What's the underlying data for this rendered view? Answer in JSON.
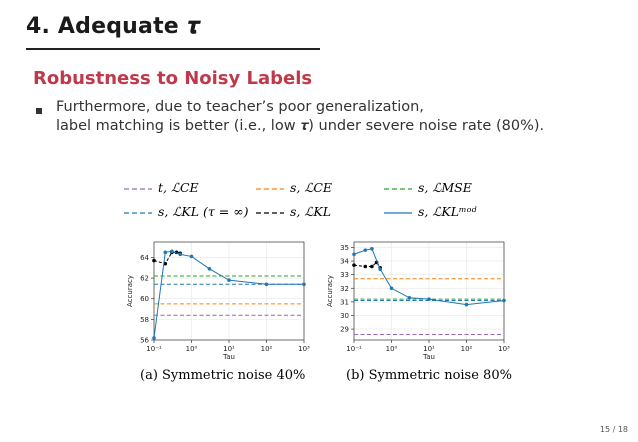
{
  "slide": {
    "title": "4. Adequate 𝝉",
    "section": "Robustness to Noisy Labels",
    "bullet_line1": "Furthermore, due to teacher’s poor generalization,",
    "bullet_line2": "label matching is better (i.e., low 𝝉) under severe noise rate (80%).",
    "page": "15 / 18"
  },
  "legend": {
    "items": [
      {
        "label": "𝑡, ℒ𝐶𝐸",
        "color": "#9467bd",
        "style": "dashed"
      },
      {
        "label": "𝑠, ℒ𝐶𝐸",
        "color": "#ff7f0e",
        "style": "dashed"
      },
      {
        "label": "𝑠, ℒ𝑀𝑆𝐸",
        "color": "#2ca02c",
        "style": "dashed"
      },
      {
        "label": "𝑠, ℒ𝐾𝐿 (τ = ∞)",
        "color": "#1f77b4",
        "style": "dashed"
      },
      {
        "label": "𝑠, ℒ𝐾𝐿",
        "color": "#000000",
        "style": "dashed"
      },
      {
        "label": "𝑠, ℒ𝐾𝐿ᵐᵒᵈ",
        "color": "#1f77b4",
        "style": "solid"
      }
    ]
  },
  "chart_data": [
    {
      "type": "line",
      "caption": "(a) Symmetric noise 40%",
      "xlabel": "Tau",
      "ylabel": "Accuracy",
      "x_scale": "log",
      "xlim": [
        0.1,
        1000
      ],
      "ylim": [
        56,
        65.5
      ],
      "x_ticks": [
        0.1,
        1,
        10,
        100,
        1000
      ],
      "x_tick_labels": [
        "10⁻¹",
        "10⁰",
        "10¹",
        "10²",
        "10³"
      ],
      "y_ticks": [
        56,
        58,
        60,
        62,
        64
      ],
      "y_tick_labels": [
        "56",
        "58",
        "60",
        "62",
        "64"
      ],
      "series": [
        {
          "key": "t_ce",
          "type": "hline",
          "y": 58.4,
          "color": "#9467bd"
        },
        {
          "key": "s_ce",
          "type": "hline",
          "y": 59.5,
          "color": "#ff7f0e"
        },
        {
          "key": "s_mse",
          "type": "hline",
          "y": 62.2,
          "color": "#2ca02c"
        },
        {
          "key": "s_kl_inf",
          "type": "hline",
          "y": 61.4,
          "color": "#1f77b4"
        },
        {
          "key": "s_kl",
          "color": "#000000",
          "style": "dashed",
          "x": [
            0.1,
            0.2,
            0.3,
            0.4,
            0.5
          ],
          "y": [
            63.7,
            63.4,
            64.5,
            64.5,
            64.4
          ]
        },
        {
          "key": "s_kl_mod",
          "color": "#1f77b4",
          "style": "solid",
          "x": [
            0.1,
            0.2,
            0.3,
            0.5,
            1,
            3,
            10,
            100,
            1000
          ],
          "y": [
            56.2,
            64.5,
            64.6,
            64.3,
            64.1,
            62.9,
            61.8,
            61.4,
            61.4
          ]
        }
      ]
    },
    {
      "type": "line",
      "caption": "(b) Symmetric noise 80%",
      "xlabel": "Tau",
      "ylabel": "Accuracy",
      "x_scale": "log",
      "xlim": [
        0.1,
        1000
      ],
      "ylim": [
        28.2,
        35.4
      ],
      "x_ticks": [
        0.1,
        1,
        10,
        100,
        1000
      ],
      "x_tick_labels": [
        "10⁻¹",
        "10⁰",
        "10¹",
        "10²",
        "10³"
      ],
      "y_ticks": [
        29,
        30,
        31,
        32,
        33,
        34,
        35
      ],
      "y_tick_labels": [
        "29",
        "30",
        "31",
        "32",
        "33",
        "34",
        "35"
      ],
      "series": [
        {
          "key": "t_ce",
          "type": "hline",
          "y": 28.6,
          "color": "#9467bd"
        },
        {
          "key": "s_ce",
          "type": "hline",
          "y": 32.7,
          "color": "#ff7f0e"
        },
        {
          "key": "s_mse",
          "type": "hline",
          "y": 31.2,
          "color": "#2ca02c"
        },
        {
          "key": "s_kl_inf",
          "type": "hline",
          "y": 31.1,
          "color": "#1f77b4"
        },
        {
          "key": "s_kl",
          "color": "#000000",
          "style": "dashed",
          "x": [
            0.1,
            0.2,
            0.3,
            0.4,
            0.5
          ],
          "y": [
            33.7,
            33.6,
            33.6,
            33.9,
            33.5
          ]
        },
        {
          "key": "s_kl_mod",
          "color": "#1f77b4",
          "style": "solid",
          "x": [
            0.1,
            0.2,
            0.3,
            0.5,
            1,
            3,
            10,
            100,
            1000
          ],
          "y": [
            34.5,
            34.8,
            34.9,
            33.4,
            32.0,
            31.3,
            31.2,
            30.8,
            31.1
          ]
        }
      ]
    }
  ]
}
